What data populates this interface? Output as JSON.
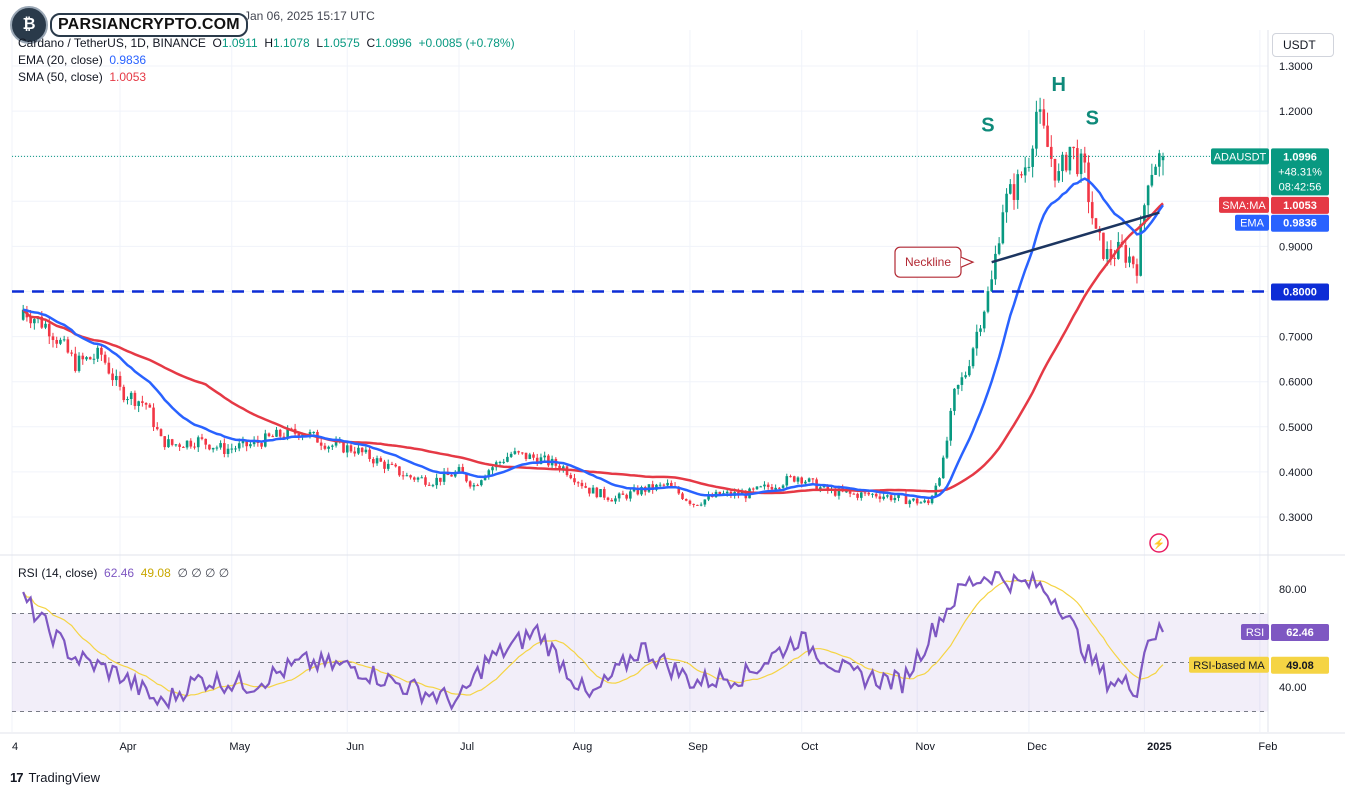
{
  "header": {
    "logo_text": "PARSIANCRYPTO.COM",
    "timestamp": "Jan 06, 2025 15:17 UTC",
    "symbol_desc": "Cardano / TetherUS, 1D, BINANCE",
    "o_label": "O",
    "o_value": "1.0911",
    "h_label": "H",
    "h_value": "1.1078",
    "l_label": "L",
    "l_value": "1.0575",
    "c_label": "C",
    "c_value": "1.0996",
    "change": "+0.0085 (+0.78%)",
    "ema_label": "EMA (20, close)",
    "ema_value": "0.9836",
    "sma_label": "SMA (50, close)",
    "sma_value": "1.0053",
    "rsi_label": "RSI (14, close)",
    "rsi_value": "62.46",
    "rsi_ma_value": "49.08",
    "rsi_extra": "∅ ∅ ∅ ∅",
    "currency_button": "USDT"
  },
  "footer": {
    "brand": "TradingView"
  },
  "colors": {
    "up": "#089981",
    "down": "#f23645",
    "ema": "#2962ff",
    "sma": "#e53945",
    "rsi": "#7e57c2",
    "rsi_ma": "#f5d444",
    "annotation": "#0f8a7a",
    "neckline": "#1c3560"
  },
  "chart_data": [
    {
      "type": "candlestick",
      "symbol": "ADAUSDT",
      "timeframe": "1D",
      "x_ticks": [
        "4",
        "Apr",
        "May",
        "Jun",
        "Jul",
        "Aug",
        "Sep",
        "Oct",
        "Nov",
        "Dec",
        "2025",
        "Feb"
      ],
      "y_ticks": [
        "1.3000",
        "1.2000",
        "1.0000",
        "0.9000",
        "0.7000",
        "0.6000",
        "0.5000",
        "0.4000",
        "0.3000"
      ],
      "ylim": [
        0.25,
        1.35
      ],
      "series": [
        {
          "name": "ADAUSDT",
          "x": [
            "Mar 4",
            "Mar 11",
            "Mar 18",
            "Mar 25",
            "Apr 1",
            "Apr 8",
            "Apr 12",
            "Apr 15",
            "Apr 22",
            "Apr 29",
            "May 6",
            "May 13",
            "May 20",
            "May 27",
            "Jun 3",
            "Jun 10",
            "Jun 17",
            "Jun 24",
            "Jul 1",
            "Jul 5",
            "Jul 8",
            "Jul 15",
            "Jul 22",
            "Jul 29",
            "Aug 5",
            "Aug 12",
            "Aug 19",
            "Aug 26",
            "Sep 2",
            "Sep 9",
            "Sep 16",
            "Sep 23",
            "Sep 30",
            "Oct 7",
            "Oct 14",
            "Oct 21",
            "Oct 28",
            "Nov 4",
            "Nov 8",
            "Nov 11",
            "Nov 14",
            "Nov 18",
            "Nov 21",
            "Nov 24",
            "Nov 28",
            "Dec 1",
            "Dec 3",
            "Dec 6",
            "Dec 9",
            "Dec 12",
            "Dec 16",
            "Dec 19",
            "Dec 22",
            "Dec 26",
            "Dec 30",
            "Jan 2",
            "Jan 4",
            "Jan 6"
          ],
          "close": [
            0.76,
            0.72,
            0.64,
            0.66,
            0.58,
            0.55,
            0.47,
            0.46,
            0.47,
            0.45,
            0.46,
            0.48,
            0.49,
            0.46,
            0.45,
            0.42,
            0.39,
            0.38,
            0.4,
            0.37,
            0.4,
            0.44,
            0.43,
            0.41,
            0.36,
            0.34,
            0.36,
            0.37,
            0.33,
            0.35,
            0.35,
            0.37,
            0.39,
            0.36,
            0.35,
            0.35,
            0.34,
            0.33,
            0.42,
            0.57,
            0.62,
            0.74,
            0.82,
            0.99,
            1.04,
            1.1,
            1.2,
            1.12,
            1.05,
            1.12,
            1.06,
            0.92,
            0.88,
            0.89,
            0.86,
            1.06,
            1.09,
            1.0996
          ]
        },
        {
          "name": "EMA",
          "value": 0.9836
        },
        {
          "name": "SMA:MA",
          "value": 1.0053
        }
      ],
      "price_levels": [
        {
          "label": "ADAUSDT",
          "value": "1.0996",
          "change": "+48.31%",
          "countdown": "08:42:56"
        },
        {
          "label": "SMA:MA",
          "value": "1.0053"
        },
        {
          "label": "EMA",
          "value": "0.9836"
        },
        {
          "label": "",
          "value": "0.8000"
        }
      ],
      "annotations": [
        "S",
        "H",
        "S",
        "Neckline"
      ]
    },
    {
      "type": "line",
      "name": "RSI (14, close)",
      "y_ticks": [
        "80.00",
        "40.00"
      ],
      "ylim": [
        20,
        90
      ],
      "bands": [
        30,
        50,
        70
      ],
      "series": [
        {
          "name": "RSI",
          "last": "62.46"
        },
        {
          "name": "RSI-based MA",
          "last": "49.08"
        }
      ],
      "x": [
        "Mar 4",
        "Mar 11",
        "Mar 18",
        "Apr 1",
        "Apr 12",
        "Apr 22",
        "May 6",
        "May 20",
        "Jun 3",
        "Jun 17",
        "Jul 1",
        "Jul 8",
        "Jul 22",
        "Aug 5",
        "Aug 19",
        "Sep 2",
        "Sep 16",
        "Sep 30",
        "Oct 14",
        "Oct 28",
        "Nov 8",
        "Nov 14",
        "Nov 21",
        "Nov 28",
        "Dec 3",
        "Dec 9",
        "Dec 16",
        "Dec 22",
        "Dec 30",
        "Jan 2",
        "Jan 6"
      ],
      "values": [
        76,
        63,
        52,
        45,
        33,
        43,
        41,
        50,
        48,
        40,
        34,
        50,
        63,
        35,
        56,
        42,
        45,
        60,
        45,
        42,
        70,
        82,
        86,
        82,
        82,
        75,
        55,
        43,
        40,
        61,
        62.46
      ]
    }
  ]
}
